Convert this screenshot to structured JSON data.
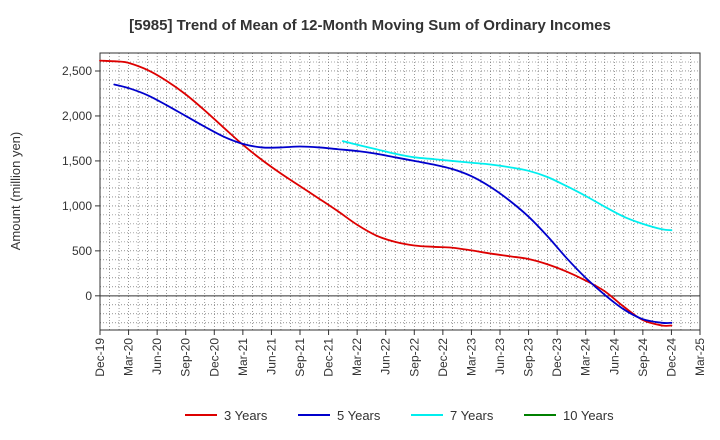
{
  "chart_data": {
    "type": "line",
    "title": "[5985]  Trend of Mean of 12-Month Moving Sum of Ordinary Incomes",
    "xlabel": "",
    "ylabel": "Amount (million yen)",
    "ylim": [
      -380,
      2700
    ],
    "yticks": [
      0,
      500,
      1000,
      1500,
      2000,
      2500
    ],
    "ytick_labels": [
      "0",
      "500",
      "1,000",
      "1,500",
      "2,000",
      "2,500"
    ],
    "x_start": "Dec-19",
    "x_end": "Mar-25",
    "xtick_labels": [
      "Dec-19",
      "Mar-20",
      "Jun-20",
      "Sep-20",
      "Dec-20",
      "Mar-21",
      "Jun-21",
      "Sep-21",
      "Dec-21",
      "Mar-22",
      "Jun-22",
      "Sep-22",
      "Dec-22",
      "Mar-23",
      "Jun-23",
      "Sep-23",
      "Dec-23",
      "Mar-24",
      "Jun-24",
      "Sep-24",
      "Dec-24",
      "Mar-25"
    ],
    "grid": true,
    "legend_position": "bottom",
    "series": [
      {
        "name": "3 Years",
        "color": "#dd0000",
        "x": [
          0,
          0.67,
          1,
          1.67,
          2.33,
          3,
          3.67,
          4.33,
          5,
          5.67,
          6.33,
          7,
          7.67,
          8.33,
          9,
          9.67,
          10.33,
          11,
          11.67,
          12.33,
          13,
          13.67,
          14.33,
          15,
          15.67,
          16.33,
          17,
          17.67,
          18.33,
          19,
          19.67,
          20
        ],
        "values": [
          2615,
          2605,
          2590,
          2510,
          2390,
          2240,
          2060,
          1870,
          1680,
          1510,
          1360,
          1220,
          1080,
          940,
          790,
          670,
          600,
          560,
          545,
          535,
          505,
          470,
          440,
          410,
          350,
          270,
          170,
          50,
          -120,
          -270,
          -330,
          -330
        ]
      },
      {
        "name": "5 Years",
        "color": "#0000cc",
        "x": [
          0.5,
          1,
          1.67,
          2.33,
          3,
          3.67,
          4.33,
          5,
          5.67,
          6.33,
          7,
          7.67,
          8.33,
          9,
          9.67,
          10.33,
          11,
          11.67,
          12.33,
          13,
          13.67,
          14.33,
          15,
          15.67,
          16.33,
          17,
          17.67,
          18.33,
          19,
          19.67,
          20
        ],
        "values": [
          2350,
          2310,
          2230,
          2120,
          2000,
          1880,
          1770,
          1690,
          1650,
          1650,
          1660,
          1650,
          1630,
          1610,
          1580,
          1540,
          1500,
          1460,
          1410,
          1330,
          1210,
          1060,
          880,
          660,
          420,
          200,
          10,
          -150,
          -260,
          -300,
          -300
        ]
      },
      {
        "name": "7 Years",
        "color": "#00eeee",
        "x": [
          8.5,
          9,
          9.67,
          10.33,
          11,
          11.67,
          12.33,
          13,
          13.67,
          14.33,
          15,
          15.67,
          16.33,
          17,
          17.67,
          18.33,
          19,
          19.67,
          20
        ],
        "values": [
          1720,
          1680,
          1630,
          1580,
          1540,
          1520,
          1500,
          1480,
          1460,
          1430,
          1390,
          1320,
          1220,
          1110,
          990,
          880,
          800,
          740,
          730
        ]
      },
      {
        "name": "10 Years",
        "color": "#008000",
        "x": [],
        "values": []
      }
    ]
  }
}
